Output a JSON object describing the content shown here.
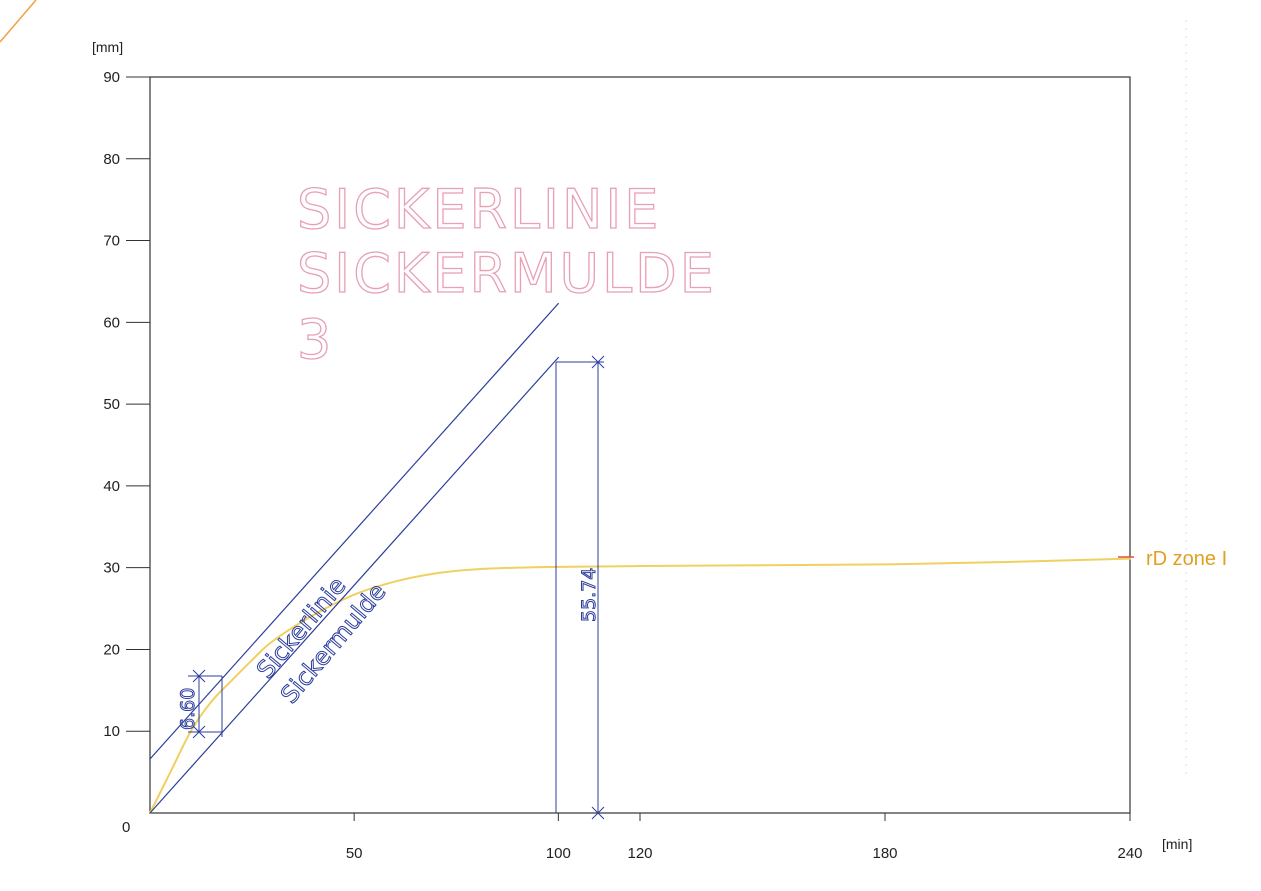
{
  "chart_data": {
    "type": "line",
    "title": "",
    "xlabel": "[min]",
    "ylabel": "[mm]",
    "xlim": [
      0,
      240
    ],
    "ylim": [
      0,
      90
    ],
    "x_ticks": [
      50,
      100,
      120,
      180,
      240
    ],
    "y_ticks": [
      10,
      20,
      30,
      40,
      50,
      60,
      70,
      80,
      90
    ],
    "origin_label": "0",
    "grid": false,
    "stamp_lines": [
      "SICKERLINIE",
      "SICKERMULDE",
      "3"
    ],
    "series": [
      {
        "name": "rD zone I",
        "color": "#f0d060",
        "x": [
          0,
          5,
          10,
          15,
          20,
          25,
          30,
          40,
          50,
          60,
          70,
          80,
          90,
          100,
          120,
          150,
          180,
          210,
          240
        ],
        "y": [
          0,
          5,
          10,
          13.6,
          16.2,
          18.7,
          21,
          24.2,
          26.7,
          28.3,
          29.3,
          29.8,
          30.0,
          30.1,
          30.2,
          30.3,
          30.4,
          30.7,
          31.1
        ]
      },
      {
        "name": "Sickerlinie",
        "color": "#2c3d9c",
        "x": [
          0,
          100
        ],
        "y": [
          6.6,
          62.3
        ]
      },
      {
        "name": "Sickermulde",
        "color": "#2c3d9c",
        "x": [
          0,
          100
        ],
        "y": [
          0,
          55.7
        ]
      }
    ],
    "annotations": [
      {
        "text": "6.60",
        "x": 9,
        "y_from": 10,
        "y_to": 16.6
      },
      {
        "text": "55.74",
        "x": 110,
        "y_from": 0,
        "y_to": 55.74
      }
    ]
  }
}
